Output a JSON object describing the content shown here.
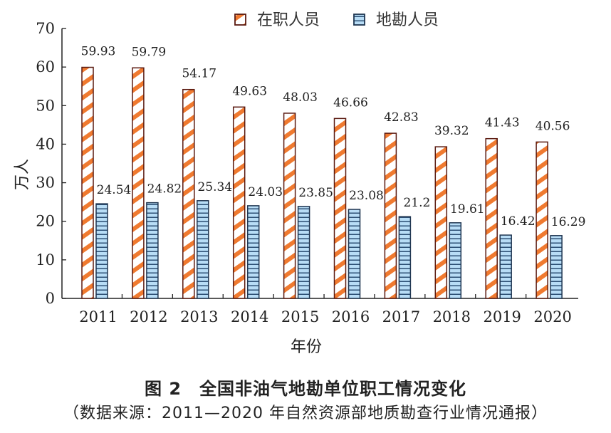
{
  "chart_data": {
    "type": "bar",
    "title": "图 2　全国非油气地勘单位职工情况变化",
    "subtitle": "（数据来源：2011—2020 年自然资源部地质勘查行业情况通报）",
    "xlabel": "年份",
    "ylabel": "万人",
    "ylim": [
      0,
      70
    ],
    "yticks": [
      0,
      10,
      20,
      30,
      40,
      50,
      60,
      70
    ],
    "categories": [
      "2011",
      "2012",
      "2013",
      "2014",
      "2015",
      "2016",
      "2017",
      "2018",
      "2019",
      "2020"
    ],
    "legend_position": "top-right",
    "grid": false,
    "series": [
      {
        "name": "在职人员",
        "color": "#f07a30",
        "pattern": "diagonal-stripes",
        "values": [
          59.93,
          59.79,
          54.17,
          49.63,
          48.03,
          46.66,
          42.83,
          39.32,
          41.43,
          40.56
        ]
      },
      {
        "name": "地勘人员",
        "color": "#a9d4f2",
        "pattern": "horizontal-stripes",
        "values": [
          24.54,
          24.82,
          25.34,
          24.03,
          23.85,
          23.08,
          21.2,
          19.61,
          16.42,
          16.29
        ]
      }
    ]
  }
}
